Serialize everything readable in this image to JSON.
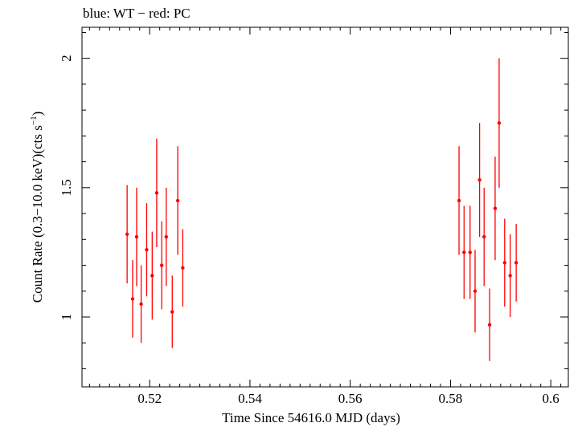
{
  "chart_data": {
    "type": "scatter",
    "title": "blue: WT − red: PC",
    "xlabel": "Time Since 54616.0 MJD (days)",
    "ylabel": {
      "prefix": "Count Rate (0.3−10.0 keV)(cts s",
      "superscript": "−1",
      "suffix": ")"
    },
    "xlim": [
      0.5065,
      0.6035
    ],
    "ylim": [
      0.73,
      2.12
    ],
    "x_ticks": [
      {
        "value": 0.52,
        "label": "0.52"
      },
      {
        "value": 0.54,
        "label": "0.54"
      },
      {
        "value": 0.56,
        "label": "0.56"
      },
      {
        "value": 0.58,
        "label": "0.58"
      },
      {
        "value": 0.6,
        "label": "0.6"
      }
    ],
    "x_minor_step": 0.002,
    "y_ticks": [
      {
        "value": 1.0,
        "label": "1"
      },
      {
        "value": 1.5,
        "label": "1.5"
      },
      {
        "value": 2.0,
        "label": "2"
      }
    ],
    "y_minor_step": 0.1,
    "series": [
      {
        "name": "PC",
        "color": "#ff0000",
        "points": [
          {
            "x": 0.5155,
            "y": 1.32,
            "y_err": 0.19,
            "x_err": 0.0003
          },
          {
            "x": 0.5166,
            "y": 1.07,
            "y_err": 0.15,
            "x_err": 0.0003
          },
          {
            "x": 0.5174,
            "y": 1.31,
            "y_err": 0.19,
            "x_err": 0.0003
          },
          {
            "x": 0.5183,
            "y": 1.05,
            "y_err": 0.15,
            "x_err": 0.0003
          },
          {
            "x": 0.5194,
            "y": 1.26,
            "y_err": 0.18,
            "x_err": 0.0003
          },
          {
            "x": 0.5205,
            "y": 1.16,
            "y_err": 0.17,
            "x_err": 0.0003
          },
          {
            "x": 0.5214,
            "y": 1.48,
            "y_err": 0.21,
            "x_err": 0.0003
          },
          {
            "x": 0.5224,
            "y": 1.2,
            "y_err": 0.17,
            "x_err": 0.0003
          },
          {
            "x": 0.5233,
            "y": 1.31,
            "y_err": 0.19,
            "x_err": 0.0003
          },
          {
            "x": 0.5245,
            "y": 1.02,
            "y_err": 0.14,
            "x_err": 0.0003
          },
          {
            "x": 0.5256,
            "y": 1.45,
            "y_err": 0.21,
            "x_err": 0.0003
          },
          {
            "x": 0.5266,
            "y": 1.19,
            "y_err": 0.15,
            "x_err": 0.0003
          },
          {
            "x": 0.5817,
            "y": 1.45,
            "y_err": 0.21,
            "x_err": 0.0003
          },
          {
            "x": 0.5827,
            "y": 1.25,
            "y_err": 0.18,
            "x_err": 0.0003
          },
          {
            "x": 0.5839,
            "y": 1.25,
            "y_err": 0.18,
            "x_err": 0.0003
          },
          {
            "x": 0.5849,
            "y": 1.1,
            "y_err": 0.16,
            "x_err": 0.0003
          },
          {
            "x": 0.5858,
            "y": 1.53,
            "y_err": 0.22,
            "x_err": 0.0003
          },
          {
            "x": 0.5867,
            "y": 1.31,
            "y_err": 0.19,
            "x_err": 0.0003
          },
          {
            "x": 0.5878,
            "y": 0.97,
            "y_err": 0.14,
            "x_err": 0.0003
          },
          {
            "x": 0.5889,
            "y": 1.42,
            "y_err": 0.2,
            "x_err": 0.0003
          },
          {
            "x": 0.5897,
            "y": 1.75,
            "y_err": 0.25,
            "x_err": 0.0003
          },
          {
            "x": 0.5908,
            "y": 1.21,
            "y_err": 0.17,
            "x_err": 0.0003
          },
          {
            "x": 0.5919,
            "y": 1.16,
            "y_err": 0.16,
            "x_err": 0.0003
          },
          {
            "x": 0.5931,
            "y": 1.21,
            "y_err": 0.15,
            "x_err": 0.0003
          }
        ]
      }
    ]
  }
}
